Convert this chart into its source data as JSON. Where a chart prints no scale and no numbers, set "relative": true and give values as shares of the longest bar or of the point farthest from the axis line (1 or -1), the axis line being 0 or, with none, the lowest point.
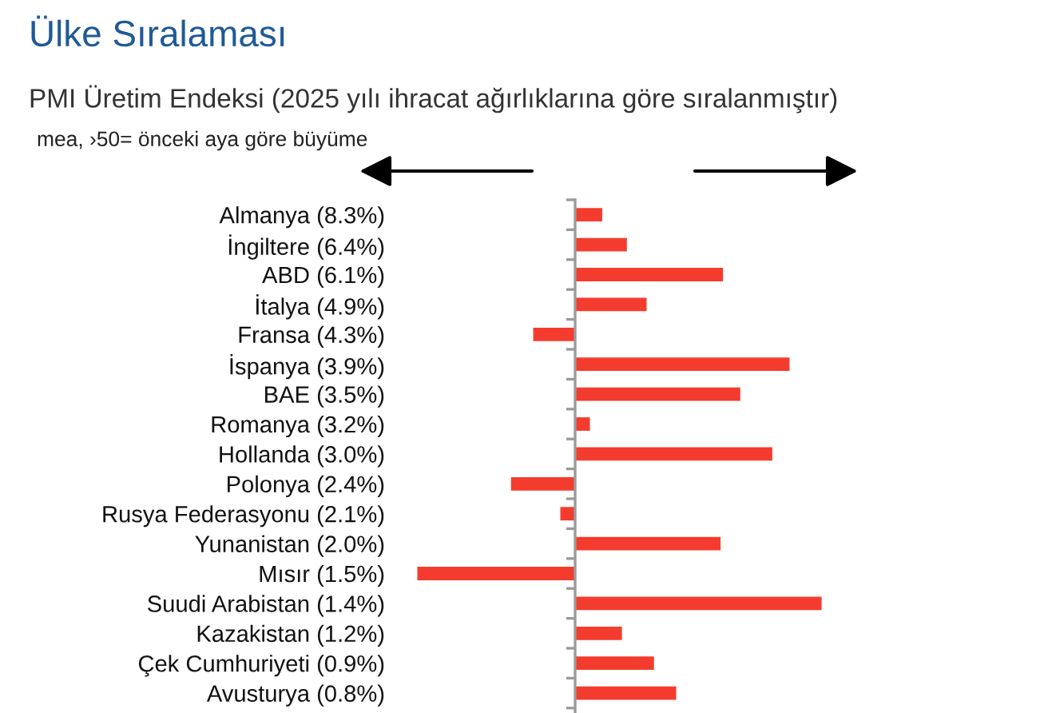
{
  "chart_data": {
    "type": "bar",
    "orientation": "horizontal",
    "relative": true,
    "title": "Ülke Sıralaması",
    "subtitle": "PMI Üretim Endeksi (2025 yılı ihracat ağırlıklarına göre sıralanmıştır)",
    "annotations": [
      "mea, ›50= önceki aya göre büyüme"
    ],
    "categories": [
      "Almanya (8.3%)",
      "İngiltere (6.4%)",
      "ABD (6.1%)",
      "İtalya (4.9%)",
      "Fransa (4.3%)",
      "İspanya (3.9%)",
      "BAE (3.5%)",
      "Romanya (3.2%)",
      "Hollanda (3.0%)",
      "Polonya (2.4%)",
      "Rusya Federasyonu (2.1%)",
      "Yunanistan (2.0%)",
      "Mısır (1.5%)",
      "Suudi Arabistan (1.4%)",
      "Kazakistan (1.2%)",
      "Çek Cumhuriyeti (0.9%)",
      "Avusturya (0.8%)"
    ],
    "values": [
      0.11,
      0.21,
      0.6,
      0.29,
      -0.17,
      0.87,
      0.67,
      0.06,
      0.8,
      -0.26,
      -0.06,
      0.59,
      -0.64,
      1,
      0.19,
      0.32,
      0.41
    ],
    "color": "#f43c2e",
    "grid": false
  }
}
